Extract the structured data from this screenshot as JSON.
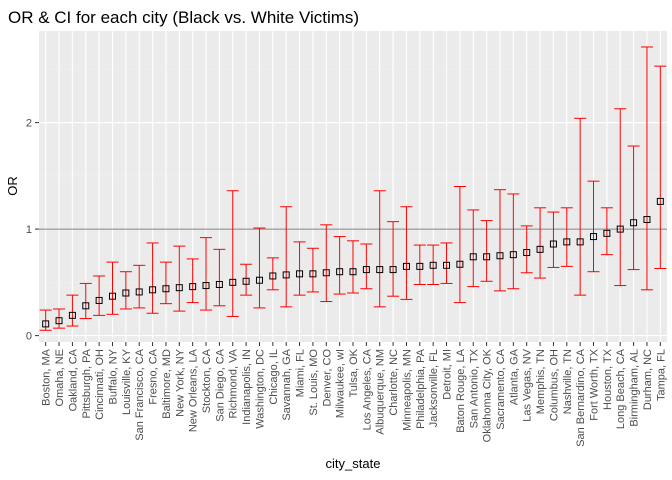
{
  "chart_data": {
    "type": "errorbar",
    "title": "OR & CI for each city (Black vs. White Victims)",
    "xlabel": "city_state",
    "ylabel": "OR",
    "ylim": [
      -0.06,
      2.86
    ],
    "yticks": [
      0,
      1,
      2
    ],
    "reference_line": 1,
    "grid": true,
    "colors": {
      "panel": "#ebebeb",
      "errorbar": "#ff0000",
      "reference_line": "#808080",
      "point_stroke": "#000000"
    },
    "categories": [
      "Boston, MA",
      "Omaha, NE",
      "Oakland, CA",
      "Pittsburgh, PA",
      "Cincinnati, OH",
      "Buffalo, NY",
      "Louisville, KY",
      "San Francisco, CA",
      "Fresno, CA",
      "Baltimore, MD",
      "New York, NY",
      "New Orleans, LA",
      "Stockton, CA",
      "San Diego, CA",
      "Richmond, VA",
      "Indianapolis, IN",
      "Washington, DC",
      "Chicago, IL",
      "Savannah, GA",
      "Miami, FL",
      "St. Louis, MO",
      "Denver, CO",
      "Milwaukee, wI",
      "Tulsa, OK",
      "Los Angeles, CA",
      "Albuquerque, NM",
      "Charlotte, NC",
      "Minneapolis, MN",
      "Philadelphia, PA",
      "Jacksonville, FL",
      "Detroit, MI",
      "Baton Rouge, LA",
      "San Antonio, TX",
      "Oklahoma City, OK",
      "Sacramento, CA",
      "Atlanta, GA",
      "Las Vegas, NV",
      "Memphis, TN",
      "Columbus, OH",
      "Nashville, TN",
      "San Bernardino, CA",
      "Fort Worth, TX",
      "Houston, TX",
      "Long Beach, CA",
      "Birmingham, AL",
      "Durham, NC",
      "Tampa, FL"
    ],
    "or": [
      0.11,
      0.14,
      0.19,
      0.28,
      0.33,
      0.37,
      0.4,
      0.41,
      0.43,
      0.44,
      0.45,
      0.46,
      0.47,
      0.48,
      0.5,
      0.51,
      0.52,
      0.56,
      0.57,
      0.58,
      0.58,
      0.59,
      0.6,
      0.6,
      0.62,
      0.62,
      0.62,
      0.65,
      0.65,
      0.66,
      0.66,
      0.67,
      0.74,
      0.74,
      0.75,
      0.76,
      0.78,
      0.81,
      0.86,
      0.88,
      0.88,
      0.93,
      0.96,
      1.0,
      1.06,
      1.09,
      1.26
    ],
    "lower": [
      0.05,
      0.07,
      0.09,
      0.16,
      0.19,
      0.2,
      0.25,
      0.26,
      0.21,
      0.3,
      0.23,
      0.31,
      0.24,
      0.28,
      0.18,
      0.38,
      0.26,
      0.43,
      0.27,
      0.38,
      0.41,
      0.32,
      0.39,
      0.4,
      0.44,
      0.27,
      0.37,
      0.34,
      0.48,
      0.48,
      0.49,
      0.31,
      0.46,
      0.51,
      0.42,
      0.44,
      0.59,
      0.54,
      0.64,
      0.65,
      0.38,
      0.6,
      0.76,
      0.47,
      0.62,
      0.43,
      0.63
    ],
    "upper": [
      0.24,
      0.25,
      0.38,
      0.49,
      0.56,
      0.69,
      0.6,
      0.66,
      0.87,
      0.69,
      0.84,
      0.72,
      0.92,
      0.81,
      1.36,
      0.67,
      1.01,
      0.73,
      1.21,
      0.88,
      0.82,
      1.04,
      0.93,
      0.89,
      0.86,
      1.36,
      1.07,
      1.21,
      0.85,
      0.85,
      0.87,
      1.4,
      1.18,
      1.08,
      1.37,
      1.33,
      1.03,
      1.2,
      1.16,
      1.2,
      2.04,
      1.45,
      1.2,
      2.13,
      1.78,
      2.71,
      2.53
    ]
  }
}
